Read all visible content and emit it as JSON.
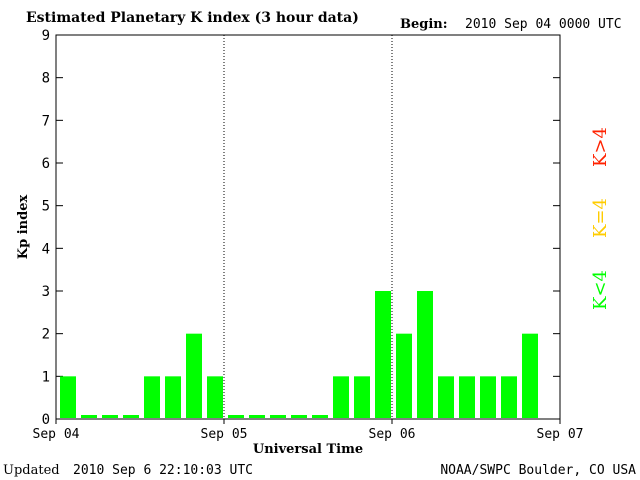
{
  "chart_data": {
    "type": "bar",
    "title": "Estimated Planetary K index (3 hour data)",
    "begin_label": "Begin:",
    "begin_value": "2010 Sep 04 0000 UTC",
    "xlabel": "Universal Time",
    "ylabel": "Kp index",
    "ylim": [
      0,
      9
    ],
    "yticks": [
      "0",
      "1",
      "2",
      "3",
      "4",
      "5",
      "6",
      "7",
      "8",
      "9"
    ],
    "xticks": [
      "Sep 04",
      "Sep 05",
      "Sep 06",
      "Sep 07"
    ],
    "day_dividers": [
      "Sep 05",
      "Sep 06"
    ],
    "values": [
      1,
      0,
      0,
      0,
      1,
      1,
      2,
      1,
      0,
      0,
      0,
      0,
      0,
      1,
      1,
      3,
      2,
      3,
      1,
      1,
      1,
      1,
      2
    ],
    "legend": [
      {
        "text": "K<4",
        "color": "#00ff00"
      },
      {
        "text": "K=4",
        "color": "#ffcc00"
      },
      {
        "text": "K>4",
        "color": "#ff2200"
      }
    ],
    "bar_color": "#00ff00",
    "grid": false
  },
  "footer": {
    "updated_label": "Updated",
    "updated_value": "2010 Sep  6 22:10:03 UTC",
    "source": "NOAA/SWPC Boulder, CO USA"
  }
}
